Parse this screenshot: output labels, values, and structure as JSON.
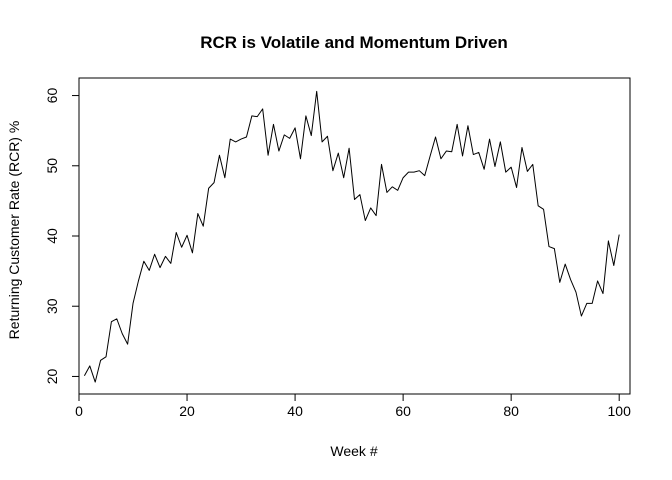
{
  "chart_data": {
    "type": "line",
    "title": "RCR is Volatile and Momentum Driven",
    "xlabel": "Week #",
    "ylabel": "Returning Customer Rate (RCR) %",
    "xlim": [
      0,
      102
    ],
    "ylim": [
      17.5,
      62.5
    ],
    "x_ticks": [
      0,
      20,
      40,
      60,
      80,
      100
    ],
    "y_ticks": [
      20,
      30,
      40,
      50,
      60
    ],
    "grid": false,
    "series": [
      {
        "color": "#000000",
        "x": [
          1,
          2,
          3,
          4,
          5,
          6,
          7,
          8,
          9,
          10,
          11,
          12,
          13,
          14,
          15,
          16,
          17,
          18,
          19,
          20,
          21,
          22,
          23,
          24,
          25,
          26,
          27,
          28,
          29,
          30,
          31,
          32,
          33,
          34,
          35,
          36,
          37,
          38,
          39,
          40,
          41,
          42,
          43,
          44,
          45,
          46,
          47,
          48,
          49,
          50,
          51,
          52,
          53,
          54,
          55,
          56,
          57,
          58,
          59,
          60,
          61,
          62,
          63,
          64,
          65,
          66,
          67,
          68,
          69,
          70,
          71,
          72,
          73,
          74,
          75,
          76,
          77,
          78,
          79,
          80,
          81,
          82,
          83,
          84,
          85,
          86,
          87,
          88,
          89,
          90,
          91,
          92,
          93,
          94,
          95,
          96,
          97,
          98,
          99,
          100
        ],
        "values": [
          20.1,
          21.5,
          19.2,
          22.3,
          22.8,
          27.8,
          28.2,
          26.1,
          24.6,
          30.4,
          33.6,
          36.4,
          35.1,
          37.4,
          35.5,
          37.1,
          36.1,
          40.5,
          38.4,
          40.1,
          37.6,
          43.2,
          41.4,
          46.8,
          47.6,
          51.5,
          48.3,
          53.8,
          53.4,
          53.8,
          54.1,
          57.1,
          57.0,
          58.1,
          51.5,
          55.9,
          52.1,
          54.4,
          53.9,
          55.4,
          51.0,
          57.1,
          54.3,
          60.6,
          53.4,
          54.2,
          49.3,
          51.8,
          48.3,
          52.5,
          45.2,
          45.9,
          42.2,
          44.0,
          42.9,
          50.2,
          46.2,
          47.0,
          46.5,
          48.3,
          49.1,
          49.1,
          49.3,
          48.6,
          51.4,
          54.1,
          51.0,
          52.1,
          52.0,
          55.9,
          51.4,
          55.7,
          51.6,
          51.9,
          49.5,
          53.8,
          49.9,
          53.4,
          49.1,
          49.8,
          46.9,
          52.6,
          49.2,
          50.2,
          44.3,
          43.8,
          38.5,
          38.2,
          33.4,
          36.0,
          33.8,
          32.0,
          28.6,
          30.4,
          30.4,
          33.6,
          31.8,
          39.3,
          35.8,
          40.2
        ]
      }
    ]
  }
}
